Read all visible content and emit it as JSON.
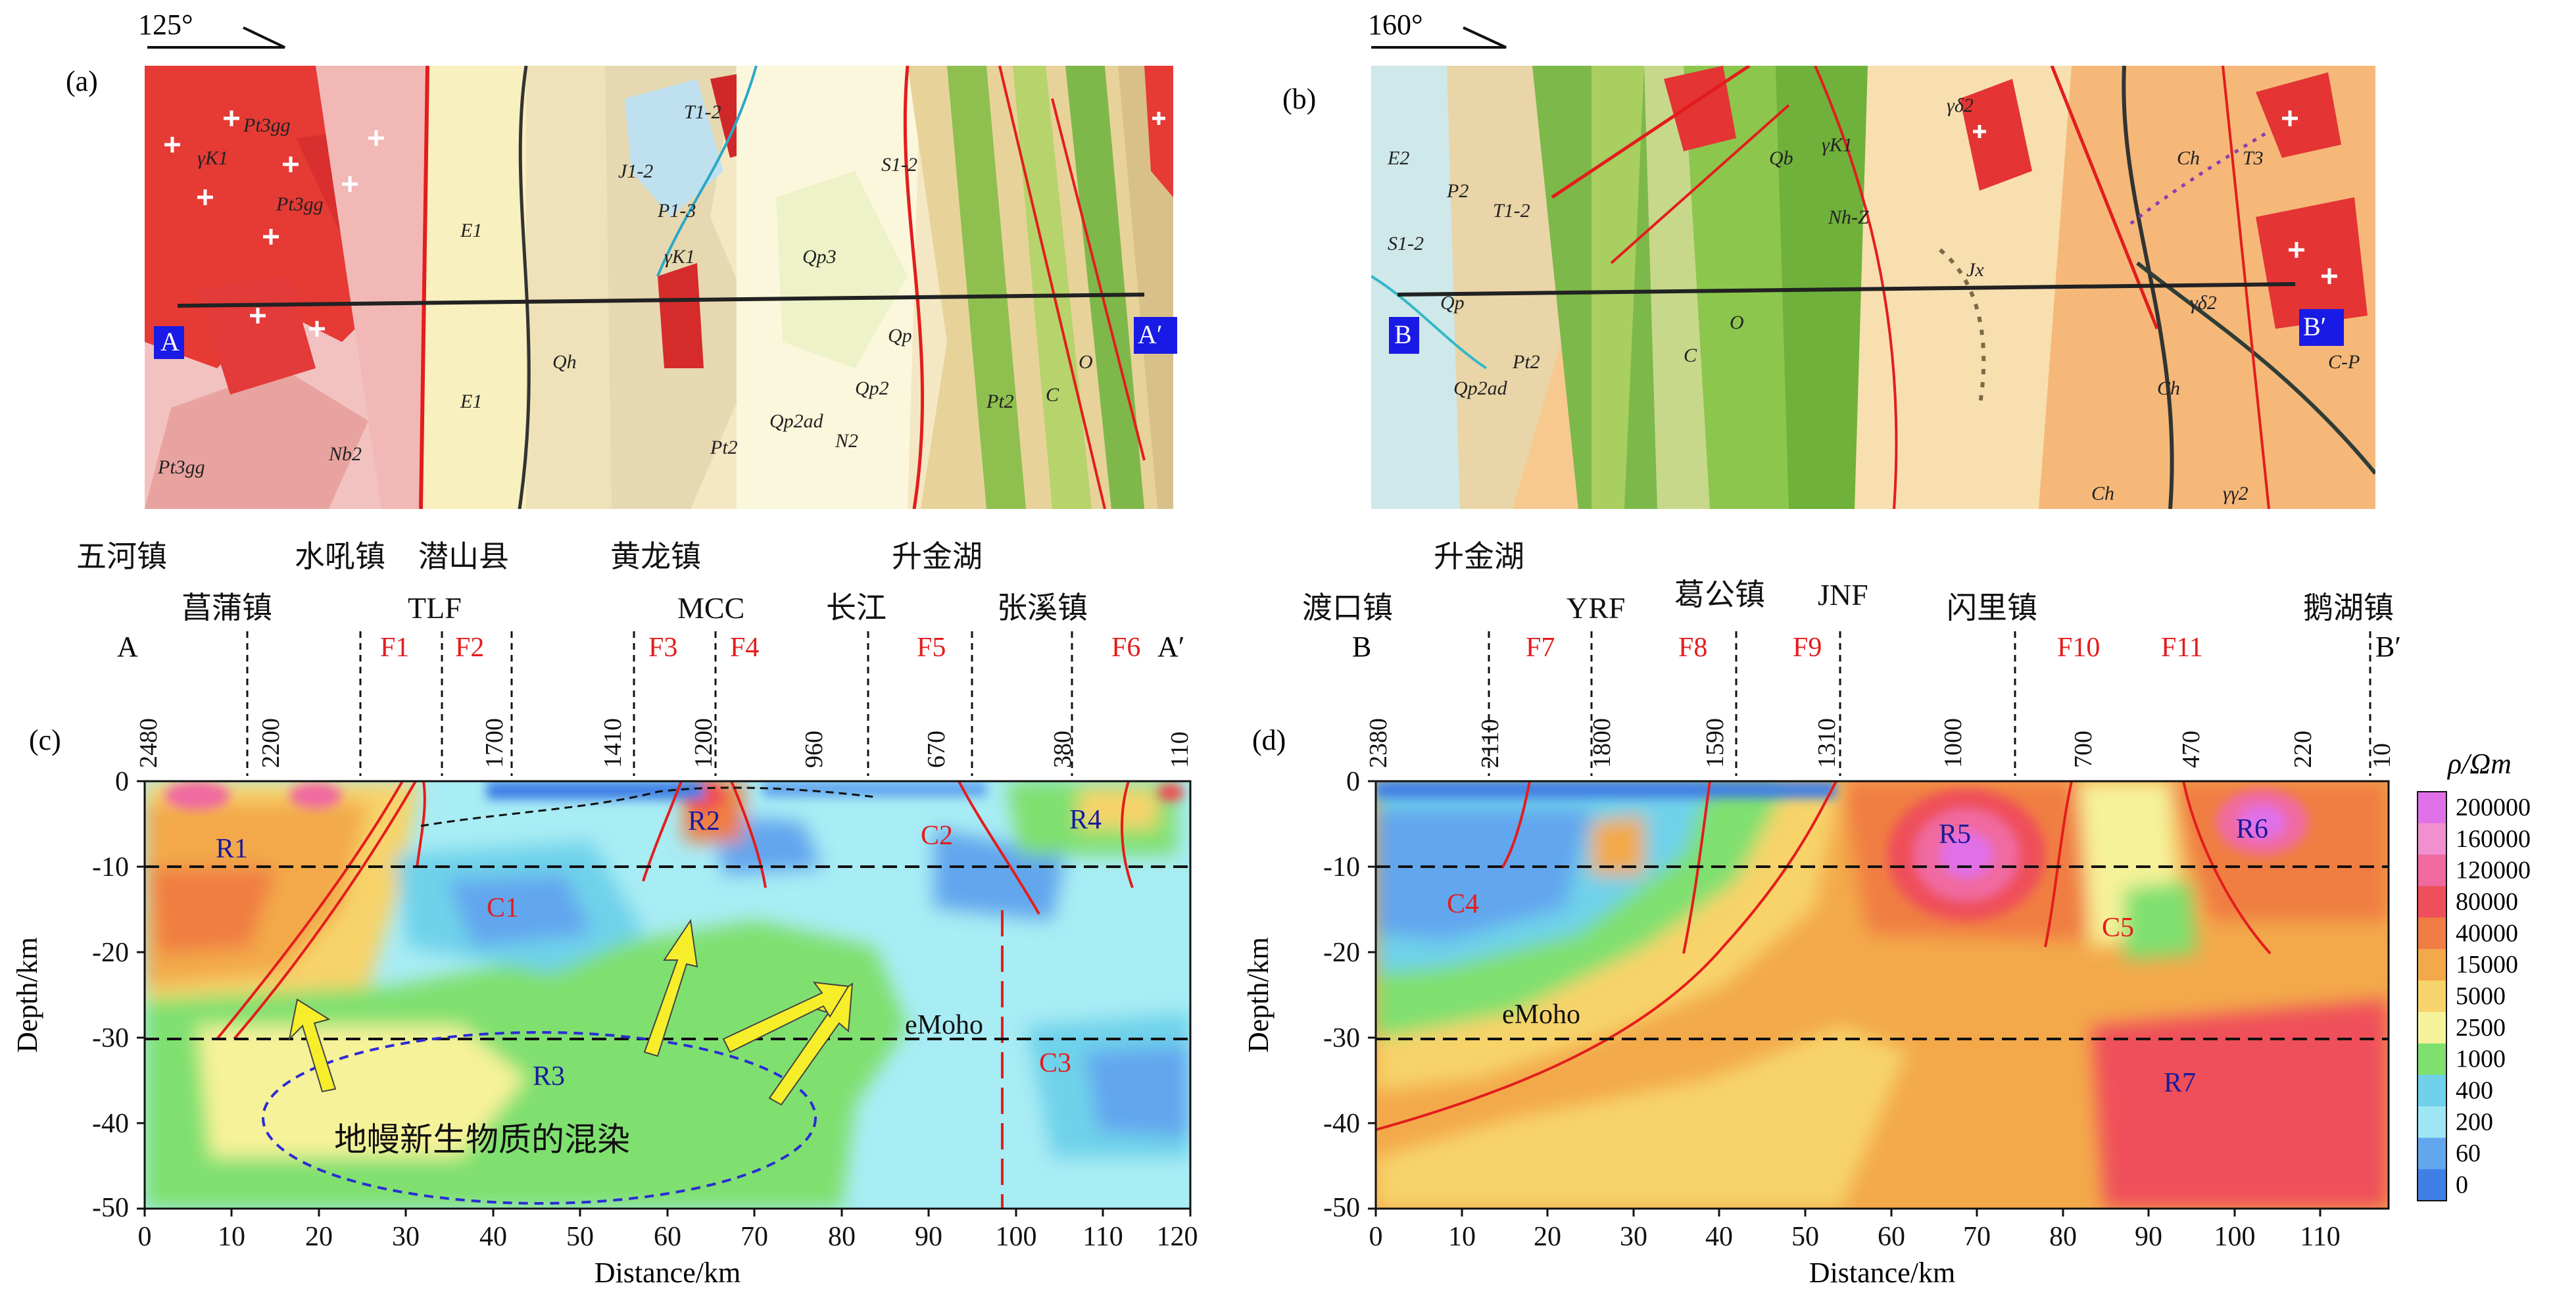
{
  "panels": {
    "a": {
      "tag": "(a)",
      "angle": "125°",
      "end_start": "A",
      "end_stop": "A′",
      "units": [
        "γK1",
        "Pt3gg",
        "Pt3gg",
        "E1",
        "E1",
        "J1-2",
        "T1-2",
        "P1-3",
        "Pt2",
        "Qp3",
        "γK1",
        "Qh",
        "Qp2",
        "Qp",
        "N2",
        "Qp2ad",
        "Pt2",
        "C",
        "O",
        "S1-2",
        "Pt3gg",
        "Nb2"
      ]
    },
    "b": {
      "tag": "(b)",
      "angle": "160°",
      "end_start": "B",
      "end_stop": "B′",
      "units": [
        "E2",
        "P2",
        "T1-2",
        "S1-2",
        "Qb",
        "γK1",
        "Nh-Z",
        "Jx",
        "Ch",
        "Ch",
        "γδ2",
        "T3",
        "C",
        "O",
        "Qp",
        "Qp2ad",
        "Pt2",
        "γδ2",
        "Ch",
        "γγ2",
        "C-P"
      ]
    },
    "c": {
      "tag": "(c)",
      "end_start": "A",
      "end_stop": "A′",
      "towns_top": [
        "五河镇",
        "水吼镇",
        "潜山县",
        "黄龙镇",
        "升金湖"
      ],
      "towns_bottom": [
        "菖蒲镇",
        "TLF",
        "MCC",
        "长江",
        "张溪镇"
      ],
      "faults": [
        "F1",
        "F2",
        "F3",
        "F4",
        "F5",
        "F6"
      ],
      "stations": [
        "2480",
        "2200",
        "1700",
        "1410",
        "1200",
        "960",
        "670",
        "380",
        "110"
      ],
      "bodies": [
        "R1",
        "R2",
        "R3",
        "R4",
        "C1",
        "C2",
        "C3"
      ],
      "emoho": "eMoho",
      "annotation": "地幔新生物质的混染",
      "xlabel": "Distance/km",
      "ylabel": "Depth/km",
      "xticks": [
        "0",
        "10",
        "20",
        "30",
        "40",
        "50",
        "60",
        "70",
        "80",
        "90",
        "100",
        "110",
        "120"
      ],
      "yticks": [
        "0",
        "-10",
        "-20",
        "-30",
        "-40",
        "-50"
      ]
    },
    "d": {
      "tag": "(d)",
      "end_start": "B",
      "end_stop": "B′",
      "towns_top": [
        "升金湖"
      ],
      "towns_bottom": [
        "渡口镇",
        "YRF",
        "葛公镇",
        "JNF",
        "闪里镇",
        "鹅湖镇"
      ],
      "faults": [
        "F7",
        "F8",
        "F9",
        "F10",
        "F11"
      ],
      "stations": [
        "2380",
        "2110",
        "1800",
        "1590",
        "1310",
        "1000",
        "700",
        "470",
        "220",
        "10"
      ],
      "bodies": [
        "R5",
        "R6",
        "R7",
        "C4",
        "C5"
      ],
      "emoho": "eMoho",
      "xlabel": "Distance/km",
      "ylabel": "Depth/km",
      "xticks": [
        "0",
        "10",
        "20",
        "30",
        "40",
        "50",
        "60",
        "70",
        "80",
        "90",
        "100",
        "110"
      ],
      "yticks": [
        "0",
        "-10",
        "-20",
        "-30",
        "-40",
        "-50"
      ]
    }
  },
  "colorbar": {
    "title": "ρ/Ωm",
    "labels": [
      "200000",
      "160000",
      "120000",
      "80000",
      "40000",
      "15000",
      "5000",
      "2500",
      "1000",
      "400",
      "200",
      "60",
      "0"
    ],
    "colors": [
      "#e070e8",
      "#f090d0",
      "#f06aa0",
      "#ef4f5a",
      "#f07d43",
      "#f3a94a",
      "#f7d36b",
      "#f6f29a",
      "#7fe070",
      "#6fd2ea",
      "#9fe6f4",
      "#62a6ee",
      "#3f7fe6"
    ]
  }
}
